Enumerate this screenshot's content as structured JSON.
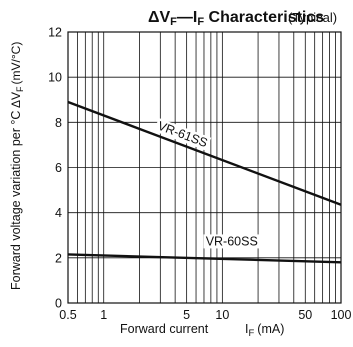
{
  "chart_data": {
    "type": "line",
    "title": "ΔV F —I F Characteristics",
    "title_parts": {
      "delta_v": "ΔV",
      "sub_f1": "F",
      "dash_i": "—I",
      "sub_f2": "F",
      "rest": " Characteristics"
    },
    "subtitle": "(Typical)",
    "xlabel": "Forward current",
    "xlabel_unit": {
      "symbol": "I",
      "sub": "F",
      "unit": "(mA)"
    },
    "ylabel": "Forward voltage variation per °C",
    "ylabel_unit": {
      "symbol": "ΔV",
      "sub": "F",
      "unit": "(mV/°C)"
    },
    "x_scale": "log",
    "xlim": [
      0.5,
      100
    ],
    "ylim": [
      0,
      12
    ],
    "x_ticks": [
      {
        "value": 0.5,
        "label": "0.5"
      },
      {
        "value": 1,
        "label": "1"
      },
      {
        "value": 5,
        "label": "5"
      },
      {
        "value": 10,
        "label": "10"
      },
      {
        "value": 50,
        "label": "50"
      },
      {
        "value": 100,
        "label": "100"
      }
    ],
    "y_ticks": [
      0,
      2,
      4,
      6,
      8,
      10,
      12
    ],
    "grid": true,
    "series": [
      {
        "name": "VR-61SS",
        "x": [
          0.5,
          100
        ],
        "y": [
          8.9,
          4.35
        ],
        "label_at": {
          "x": 4.5,
          "y": 7.3
        }
      },
      {
        "name": "VR-60SS",
        "x": [
          0.5,
          100
        ],
        "y": [
          2.15,
          1.8
        ],
        "label_at": {
          "x": 12,
          "y": 2.55
        }
      }
    ],
    "colors": {
      "line": "#111111",
      "grid": "#111111",
      "background": "#ffffff"
    }
  }
}
